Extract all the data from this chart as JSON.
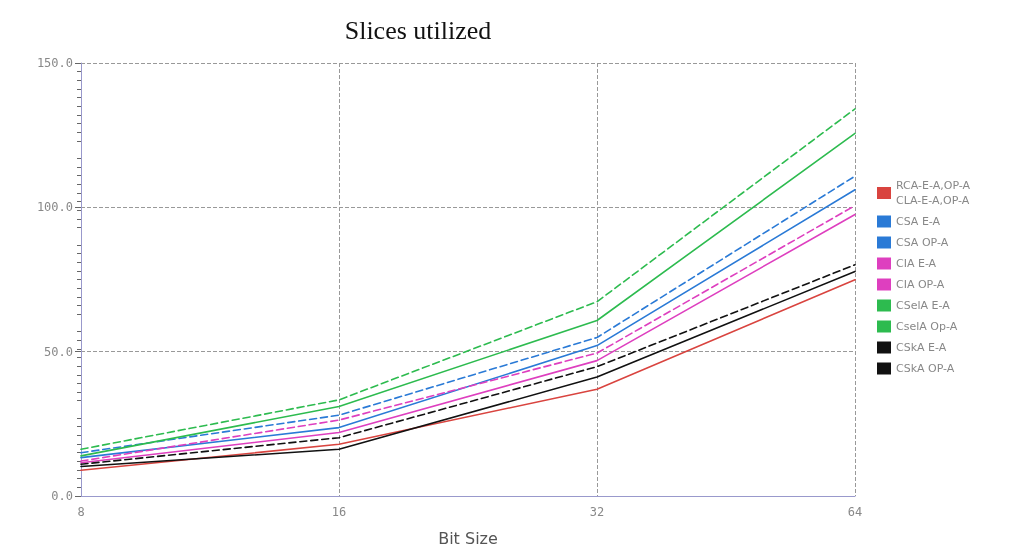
{
  "chart_data": {
    "type": "line",
    "title": "Slices utilized",
    "xlabel": "Bit Size",
    "categories": [
      "8",
      "16",
      "32",
      "64"
    ],
    "series": [
      {
        "name": "RCA-E-A,OP-A\nCLA-E-A,OP-A",
        "color": "#d9443f",
        "line_style": "solid",
        "values": [
          8.9,
          17.9,
          37,
          74.9
        ]
      },
      {
        "name": "CSA E-A",
        "color": "#2a7ad6",
        "line_style": "solid",
        "values": [
          13.3,
          23.7,
          52.1,
          106.1
        ]
      },
      {
        "name": "CSA OP-A",
        "color": "#2a7ad6",
        "line_style": "dashed",
        "values": [
          15,
          28,
          54.9,
          110.8
        ]
      },
      {
        "name": "CIA E-A",
        "color": "#de3fbf",
        "line_style": "solid",
        "values": [
          11.5,
          22,
          46.9,
          97.5
        ]
      },
      {
        "name": "CIA OP-A",
        "color": "#de3fbf",
        "line_style": "dashed",
        "values": [
          12.1,
          26.3,
          49.5,
          100.6
        ]
      },
      {
        "name": "CSelA E-A",
        "color": "#2dbb4f",
        "line_style": "solid",
        "values": [
          13.9,
          31,
          60.8,
          125.6
        ]
      },
      {
        "name": "CselA Op-A",
        "color": "#2dbb4f",
        "line_style": "dashed",
        "values": [
          16.2,
          33.3,
          67.3,
          134.1
        ]
      },
      {
        "name": "CSkA E-A",
        "color": "#111111",
        "line_style": "solid",
        "values": [
          10.2,
          16.2,
          41.2,
          77.8
        ]
      },
      {
        "name": "CSkA OP-A",
        "color": "#111111",
        "line_style": "dashed",
        "values": [
          11,
          20.2,
          44.8,
          80.1
        ]
      }
    ],
    "ylim": [
      0,
      150
    ],
    "yticks": [
      {
        "value": 0,
        "label": "0.0"
      },
      {
        "value": 50,
        "label": "50.0"
      },
      {
        "value": 100,
        "label": "100.0"
      },
      {
        "value": 150,
        "label": "150.0"
      }
    ],
    "grid": true,
    "legend": "right",
    "marker": "none"
  }
}
